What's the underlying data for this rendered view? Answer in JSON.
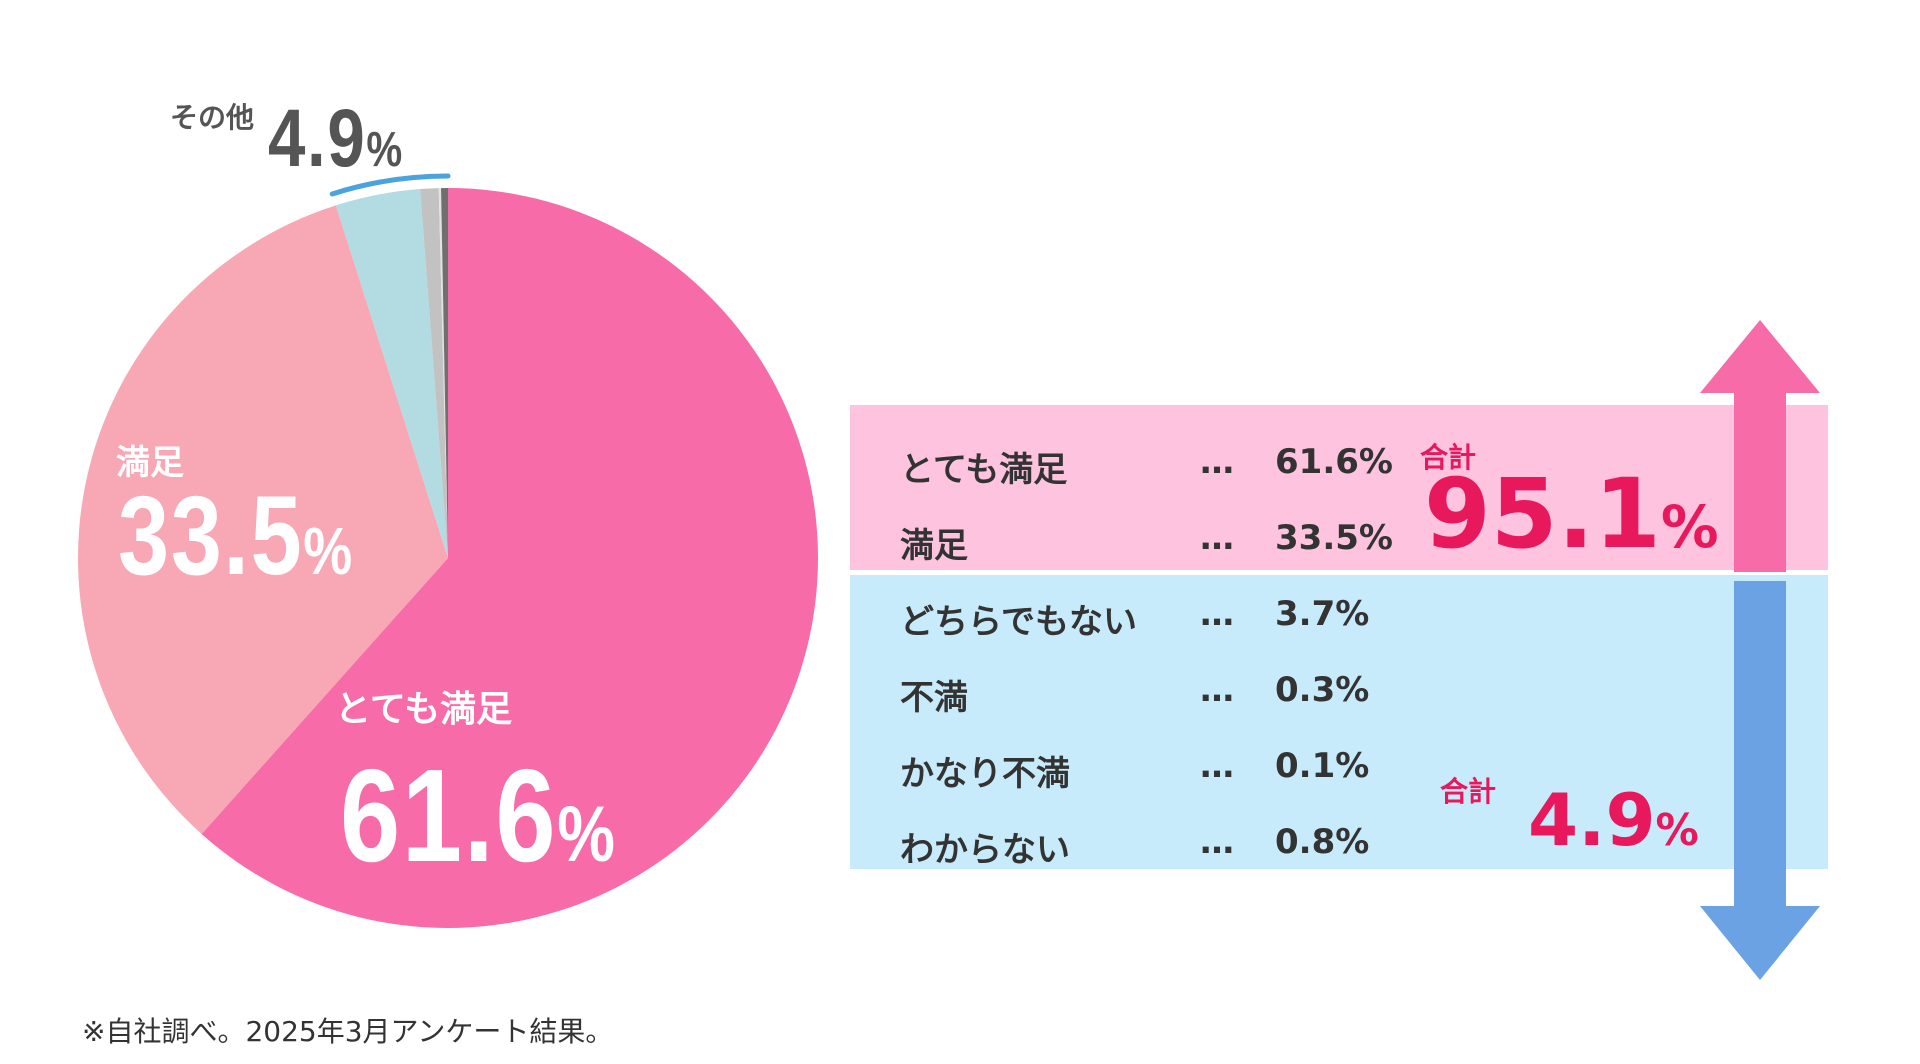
{
  "chart_data": {
    "type": "pie",
    "slices": [
      {
        "name": "とても満足",
        "value": 61.6,
        "color": "#f76ca8"
      },
      {
        "name": "満足",
        "value": 33.5,
        "color": "#f8a7b5"
      },
      {
        "name": "どちらでもない",
        "value": 3.7,
        "color": "#b3dbe2"
      },
      {
        "name": "わからない",
        "value": 0.8,
        "color": "#c2c2c2"
      },
      {
        "name": "かなり不満",
        "value": 0.1,
        "color": "#e2e2e2"
      },
      {
        "name": "不満",
        "value": 0.3,
        "color": "#6f6f6f"
      }
    ],
    "other_bracket_color": "#4aa3dd"
  },
  "pie_labels": {
    "other": {
      "name": "その他",
      "value": "4.9",
      "unit": "%"
    },
    "manzoku": {
      "name": "満足",
      "value": "33.5",
      "unit": "%"
    },
    "totemo": {
      "name": "とても満足",
      "value": "61.6",
      "unit": "%"
    }
  },
  "table": {
    "dots": "…",
    "rows": [
      {
        "name": "とても満足",
        "value": "61.6%"
      },
      {
        "name": "満足",
        "value": "33.5%"
      },
      {
        "name": "どちらでもない",
        "value": "3.7%"
      },
      {
        "name": "不満",
        "value": "0.3%"
      },
      {
        "name": "かなり不満",
        "value": "0.1%"
      },
      {
        "name": "わからない",
        "value": "0.8%"
      }
    ],
    "positive_total": {
      "label": "合計",
      "value": "95.1",
      "unit": "%"
    },
    "negative_total": {
      "label": "合計",
      "value": "4.9",
      "unit": "%"
    },
    "colors": {
      "positive_band": "#fdc3df",
      "negative_band": "#c8ebfb",
      "up_arrow": "#f76ca8",
      "down_arrow": "#6aa2e3",
      "accent": "#e8185c"
    }
  },
  "footnote": "※自社調べ。2025年3月アンケート結果。"
}
